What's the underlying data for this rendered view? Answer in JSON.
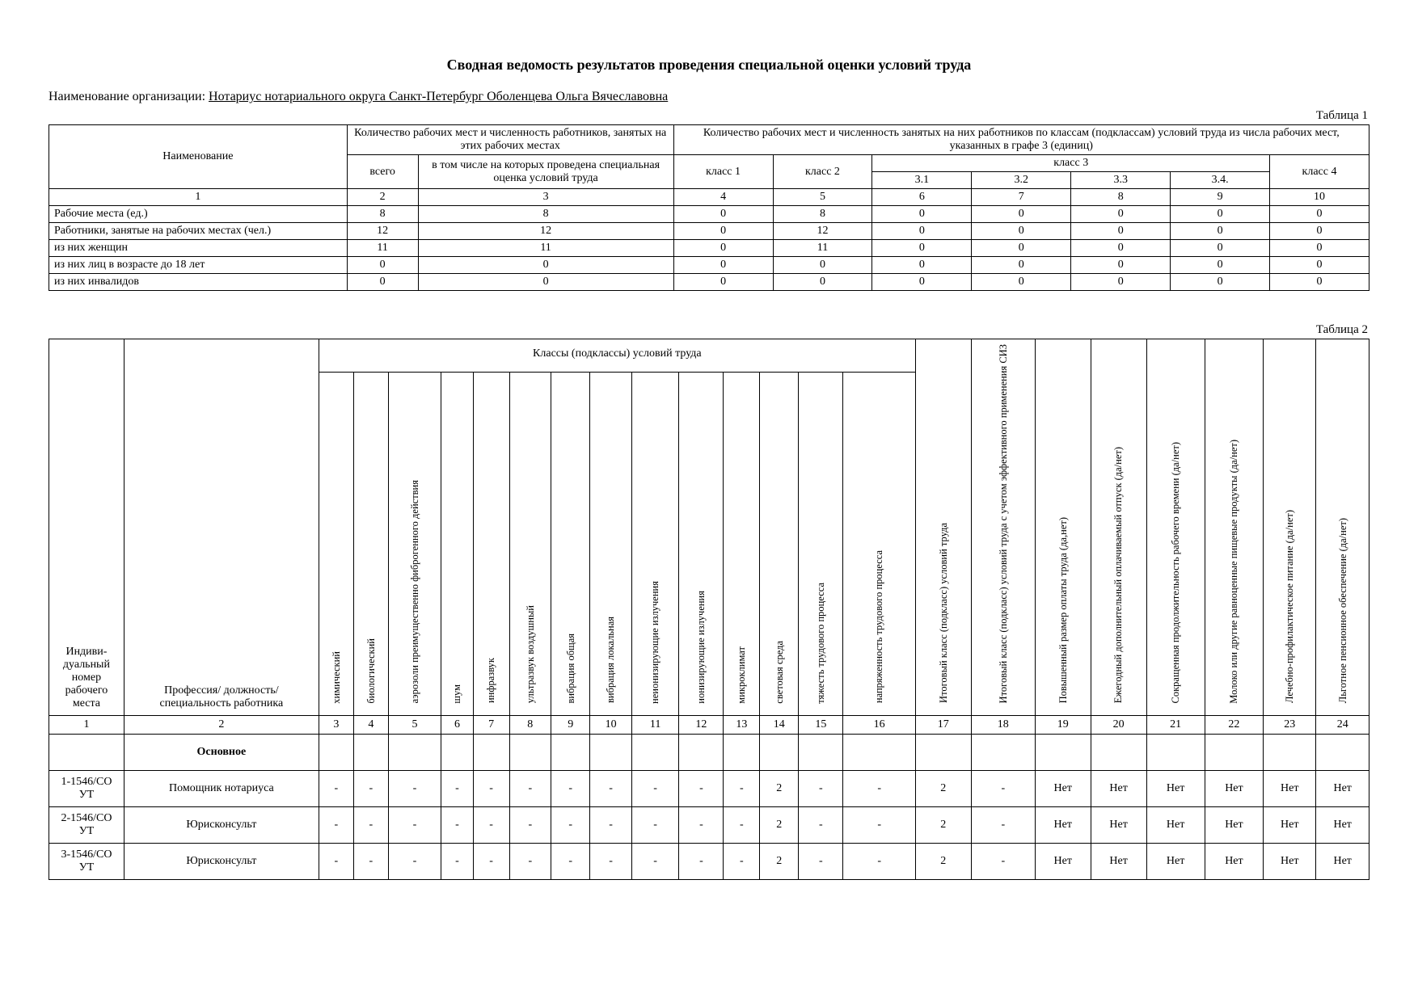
{
  "title": "Сводная ведомость результатов проведения специальной оценки условий труда",
  "org_label": "Наименование организации:",
  "org_name": "Нотариус нотариального округа Санкт-Петербург Оболенцева Ольга Вячеславовна",
  "table1": {
    "caption": "Таблица 1",
    "head": {
      "name": "Наименование",
      "qtyGroup": "Количество рабочих мест и численность работников, занятых на этих рабочих местах",
      "classGroup": "Количество рабочих мест и численность занятых на них работников по классам (подклассам) условий труда из числа рабочих мест, указанных в графе 3 (единиц)",
      "total": "всего",
      "including": "в том числе на которых проведена специальная оценка условий труда",
      "class1": "класс 1",
      "class2": "класс 2",
      "class3": "класс 3",
      "c31": "3.1",
      "c32": "3.2",
      "c33": "3.3",
      "c34": "3.4.",
      "class4": "класс 4"
    },
    "colnums": [
      "1",
      "2",
      "3",
      "4",
      "5",
      "6",
      "7",
      "8",
      "9",
      "10"
    ],
    "rows": [
      {
        "label": "Рабочие места (ед.)",
        "v": [
          "8",
          "8",
          "0",
          "8",
          "0",
          "0",
          "0",
          "0",
          "0"
        ]
      },
      {
        "label": "Работники, занятые на рабочих ме­стах (чел.)",
        "v": [
          "12",
          "12",
          "0",
          "12",
          "0",
          "0",
          "0",
          "0",
          "0"
        ]
      },
      {
        "label": "из них женщин",
        "v": [
          "11",
          "11",
          "0",
          "11",
          "0",
          "0",
          "0",
          "0",
          "0"
        ]
      },
      {
        "label": "из них лиц в возрасте до 18 лет",
        "v": [
          "0",
          "0",
          "0",
          "0",
          "0",
          "0",
          "0",
          "0",
          "0"
        ]
      },
      {
        "label": "из них инвалидов",
        "v": [
          "0",
          "0",
          "0",
          "0",
          "0",
          "0",
          "0",
          "0",
          "0"
        ]
      }
    ]
  },
  "table2": {
    "caption": "Таблица 2",
    "head": {
      "id": "Индиви­дуаль­ный номер рабоче­го места",
      "prof": "Профессия/ должность/ специальность работника",
      "classGroup": "Классы (подклассы) условий труда",
      "factors": [
        "химический",
        "биологический",
        "аэрозоли преимущественно фиброгенного действия",
        "шум",
        "инфразвук",
        "ультразвук воздушный",
        "вибрация общая",
        "вибрация локальная",
        "неионизирующие излучения",
        "ионизирующие излучения",
        "микроклимат",
        "световая среда",
        "тяжесть трудового процесса",
        "напряженность трудового процесса"
      ],
      "tail": [
        "Итоговый класс (подкласс) усло­вий труда",
        "Итоговый класс (подкласс) усло­вий труда с учетом эффективно­го применения СИЗ",
        "Повышенный размер оплаты труда (да,нет)",
        "Ежегодный дополнительный оплачиваемый отпуск (да/нет)",
        "Сокращенная продолжитель­ность рабочего времени (да/нет)",
        "Молоко или другие равноценные пищевые продукты (да/нет)",
        "Лечебно-профилактическое пи­тание (да/нет)",
        "Льготное пенсионное обеспече­ние (да/нет)"
      ]
    },
    "colnums": [
      "1",
      "2",
      "3",
      "4",
      "5",
      "6",
      "7",
      "8",
      "9",
      "10",
      "11",
      "12",
      "13",
      "14",
      "15",
      "16",
      "17",
      "18",
      "19",
      "20",
      "21",
      "22",
      "23",
      "24"
    ],
    "section": "Основное",
    "rows": [
      {
        "id": "1-1546/СО УТ",
        "prof": "Помощник нотариуса",
        "v": [
          "-",
          "-",
          "-",
          "-",
          "-",
          "-",
          "-",
          "-",
          "-",
          "-",
          "-",
          "2",
          "-",
          "-",
          "2",
          "-",
          "Нет",
          "Нет",
          "Нет",
          "Нет",
          "Нет",
          "Нет"
        ]
      },
      {
        "id": "2-1546/СО УТ",
        "prof": "Юрисконсульт",
        "v": [
          "-",
          "-",
          "-",
          "-",
          "-",
          "-",
          "-",
          "-",
          "-",
          "-",
          "-",
          "2",
          "-",
          "-",
          "2",
          "-",
          "Нет",
          "Нет",
          "Нет",
          "Нет",
          "Нет",
          "Нет"
        ]
      },
      {
        "id": "3-1546/СО УТ",
        "prof": "Юрисконсульт",
        "v": [
          "-",
          "-",
          "-",
          "-",
          "-",
          "-",
          "-",
          "-",
          "-",
          "-",
          "-",
          "2",
          "-",
          "-",
          "2",
          "-",
          "Нет",
          "Нет",
          "Нет",
          "Нет",
          "Нет",
          "Нет"
        ]
      }
    ]
  }
}
